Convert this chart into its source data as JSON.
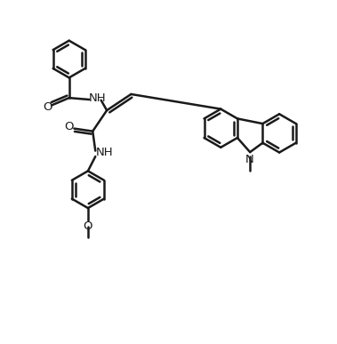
{
  "bg_color": "#ffffff",
  "line_color": "#1a1a1a",
  "line_width": 1.8,
  "figsize": [
    3.79,
    3.87
  ],
  "dpi": 100,
  "xlim": [
    0,
    10
  ],
  "ylim": [
    0,
    10
  ]
}
